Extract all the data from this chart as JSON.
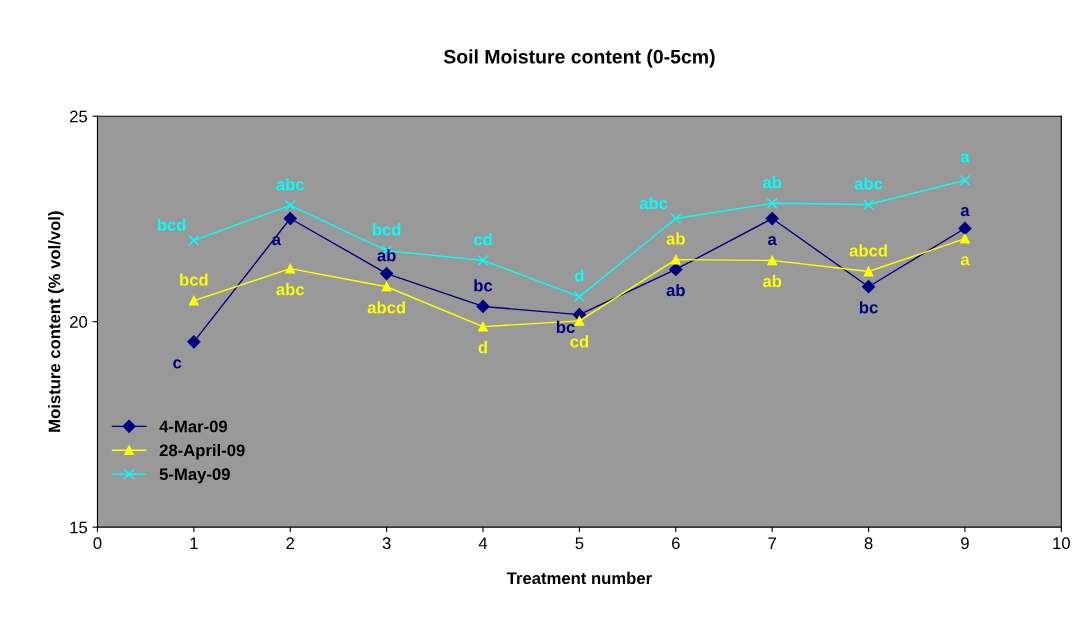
{
  "chart_data": {
    "type": "line",
    "title": "Soil Moisture content (0-5cm)",
    "xlabel": "Treatment number",
    "ylabel": "Moisture content (% vol/vol)",
    "x": [
      1,
      2,
      3,
      4,
      5,
      6,
      7,
      8,
      9
    ],
    "series": [
      {
        "name": "4-Mar-09",
        "color": "#000080",
        "marker": "diamond",
        "values": [
          19.51,
          22.51,
          21.17,
          20.37,
          20.17,
          21.27,
          22.51,
          20.85,
          22.27
        ]
      },
      {
        "name": "28-April-09",
        "color": "#ffff00",
        "marker": "triangle",
        "values": [
          20.51,
          21.29,
          20.85,
          19.88,
          20.02,
          21.51,
          21.49,
          21.22,
          22.02
        ]
      },
      {
        "name": "5-May-09",
        "color": "#00ffff",
        "marker": "cross",
        "values": [
          21.98,
          22.83,
          21.73,
          21.49,
          20.61,
          22.51,
          22.88,
          22.85,
          23.44
        ]
      }
    ],
    "xlim": [
      0,
      10
    ],
    "xticks": [
      0,
      1,
      2,
      3,
      4,
      5,
      6,
      7,
      8,
      9,
      10
    ],
    "ylim": [
      15,
      25
    ],
    "yticks": [
      15,
      20,
      25
    ],
    "grid": false,
    "legend": "bottom left",
    "annotations": [
      {
        "text": "c",
        "x": 1,
        "y": 19.51
      },
      {
        "text": "a",
        "x": 2,
        "y": 22.51
      },
      {
        "text": "ab",
        "x": 3,
        "y": 21.17
      },
      {
        "text": "bc",
        "x": 4,
        "y": 20.37
      },
      {
        "text": "bc",
        "x": 5,
        "y": 20.17
      },
      {
        "text": "ab",
        "x": 6,
        "y": 21.27
      },
      {
        "text": "a",
        "x": 7,
        "y": 22.51
      },
      {
        "text": "bc",
        "x": 8,
        "y": 20.85
      },
      {
        "text": "a",
        "x": 9,
        "y": 22.27
      },
      {
        "text": "bcd",
        "x": 1,
        "y": 20.51
      },
      {
        "text": "abc",
        "x": 2,
        "y": 21.29
      },
      {
        "text": "abcd",
        "x": 3,
        "y": 20.85
      },
      {
        "text": "d",
        "x": 4,
        "y": 19.88
      },
      {
        "text": "cd",
        "x": 5,
        "y": 20.02
      },
      {
        "text": "ab",
        "x": 6,
        "y": 21.51
      },
      {
        "text": "ab",
        "x": 7,
        "y": 21.49
      },
      {
        "text": "abcd",
        "x": 8,
        "y": 21.22
      },
      {
        "text": "a",
        "x": 9,
        "y": 22.02
      },
      {
        "text": "bcd",
        "x": 1,
        "y": 21.98
      },
      {
        "text": "abc",
        "x": 2,
        "y": 22.83
      },
      {
        "text": "bcd",
        "x": 3,
        "y": 21.73
      },
      {
        "text": "cd",
        "x": 4,
        "y": 21.49
      },
      {
        "text": "d",
        "x": 5,
        "y": 20.61
      },
      {
        "text": "abc",
        "x": 6,
        "y": 22.51
      },
      {
        "text": "ab",
        "x": 7,
        "y": 22.88
      },
      {
        "text": "abc",
        "x": 8,
        "y": 22.85
      },
      {
        "text": "a",
        "x": 9,
        "y": 23.44
      }
    ]
  }
}
